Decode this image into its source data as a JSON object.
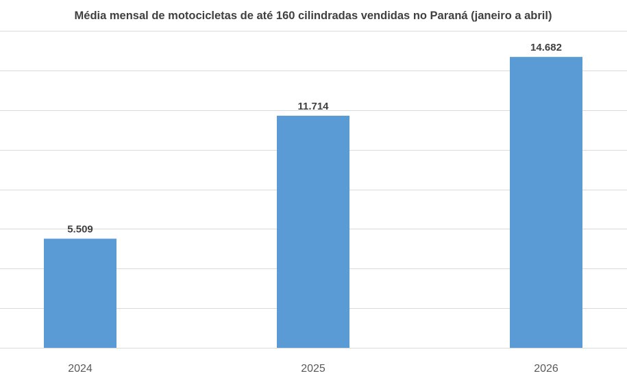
{
  "chart_data": {
    "type": "bar",
    "title": "Média mensal de motocicletas de até 160 cilindradas vendidas no Paraná (janeiro a abril)",
    "categories": [
      "2024",
      "2025",
      "2026"
    ],
    "values": [
      5509,
      11714,
      14682
    ],
    "value_labels": [
      "5.509",
      "11.714",
      "14.682"
    ],
    "xlabel": "",
    "ylabel": "",
    "ylim": [
      0,
      16000
    ],
    "y_gridline_step": 2000,
    "y_tick_labels_visible": false,
    "grid": true,
    "legend": "none",
    "colors": {
      "bar": "#5b9bd5",
      "grid": "#d9d9d9",
      "title": "#404040",
      "data_label": "#404040",
      "tick_label": "#595959"
    }
  }
}
